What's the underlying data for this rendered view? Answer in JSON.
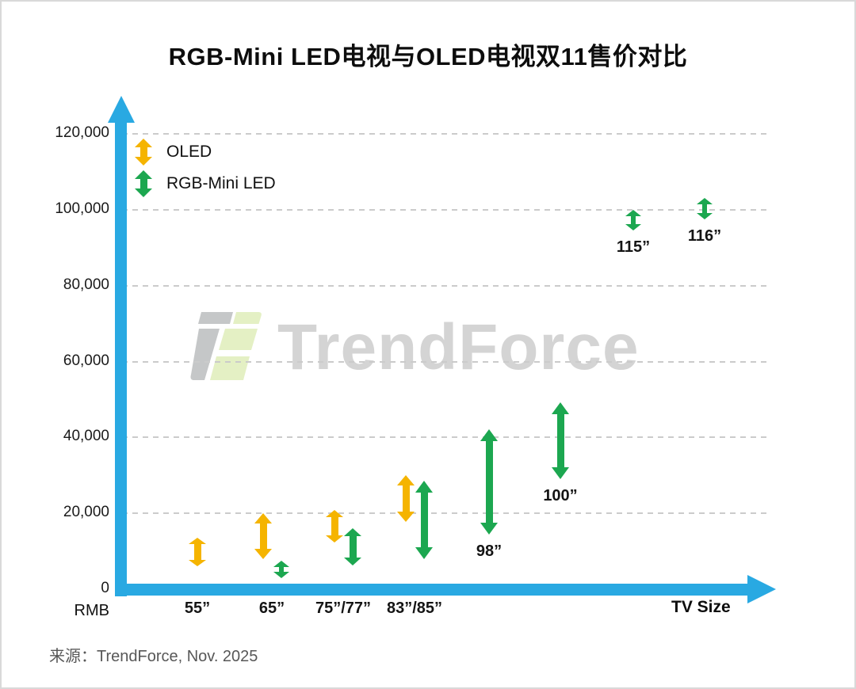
{
  "page": {
    "title": "RGB-Mini LED电视与OLED电视双11售价对比",
    "source": "来源：TrendForce, Nov. 2025",
    "watermark": "TrendForce"
  },
  "axes": {
    "y_unit": "RMB",
    "x_label": "TV Size"
  },
  "legend": [
    {
      "label": "OLED",
      "color": "#f5b400"
    },
    {
      "label": "RGB-Mini LED",
      "color": "#1ca750"
    }
  ],
  "colors": {
    "axis": "#29a9e2",
    "grid": "#cbcbcb",
    "oled": "#f5b400",
    "rgb_mini_led": "#1ca750",
    "watermark_text": "#d4d4d4",
    "logo_gray": "#c5c7c8",
    "logo_green": "#e4f0c4"
  },
  "chart_data": {
    "type": "bar",
    "subtype": "vertical-price-range-arrows",
    "title": "RGB-Mini LED电视与OLED电视双11售价对比",
    "xlabel": "TV Size",
    "ylabel": "RMB",
    "ylim": [
      0,
      130000
    ],
    "ytick_step": 20000,
    "grid": "dashed-horizontal",
    "legend_position": "top-left",
    "y_ticks": [
      {
        "label": "120,000",
        "value": 120000
      },
      {
        "label": "100,000",
        "value": 100000
      },
      {
        "label": "80,000",
        "value": 80000
      },
      {
        "label": "60,000",
        "value": 60000
      },
      {
        "label": "40,000",
        "value": 40000
      },
      {
        "label": "20,000",
        "value": 20000
      },
      {
        "label": "0",
        "value": 0
      }
    ],
    "categories": [
      {
        "label": "55”",
        "label_placement": "axis"
      },
      {
        "label": "65”",
        "label_placement": "axis"
      },
      {
        "label": "75”/77”",
        "label_placement": "axis"
      },
      {
        "label": "83”/85”",
        "label_placement": "axis"
      },
      {
        "label": "98”",
        "label_placement": "below-arrow"
      },
      {
        "label": "100”",
        "label_placement": "below-arrow"
      },
      {
        "label": "115”",
        "label_placement": "below-arrow"
      },
      {
        "label": "116”",
        "label_placement": "below-arrow"
      }
    ],
    "series": [
      {
        "name": "OLED",
        "color": "#f5b400",
        "points": [
          {
            "category": "55”",
            "low": 6000,
            "high": 13500
          },
          {
            "category": "65”",
            "low": 8000,
            "high": 20000
          },
          {
            "category": "75”/77”",
            "low": 12300,
            "high": 20900
          },
          {
            "category": "83”/85”",
            "low": 17700,
            "high": 30000
          }
        ]
      },
      {
        "name": "RGB-Mini LED",
        "color": "#1ca750",
        "points": [
          {
            "category": "65”",
            "low": 3000,
            "high": 7500
          },
          {
            "category": "75”/77”",
            "low": 6300,
            "high": 16000
          },
          {
            "category": "83”/85”",
            "low": 8000,
            "high": 28600
          },
          {
            "category": "98”",
            "low": 14400,
            "high": 42200
          },
          {
            "category": "100”",
            "low": 29000,
            "high": 49300
          },
          {
            "category": "115”",
            "low": 94600,
            "high": 100000
          },
          {
            "category": "116”",
            "low": 97500,
            "high": 103100
          }
        ]
      }
    ]
  }
}
